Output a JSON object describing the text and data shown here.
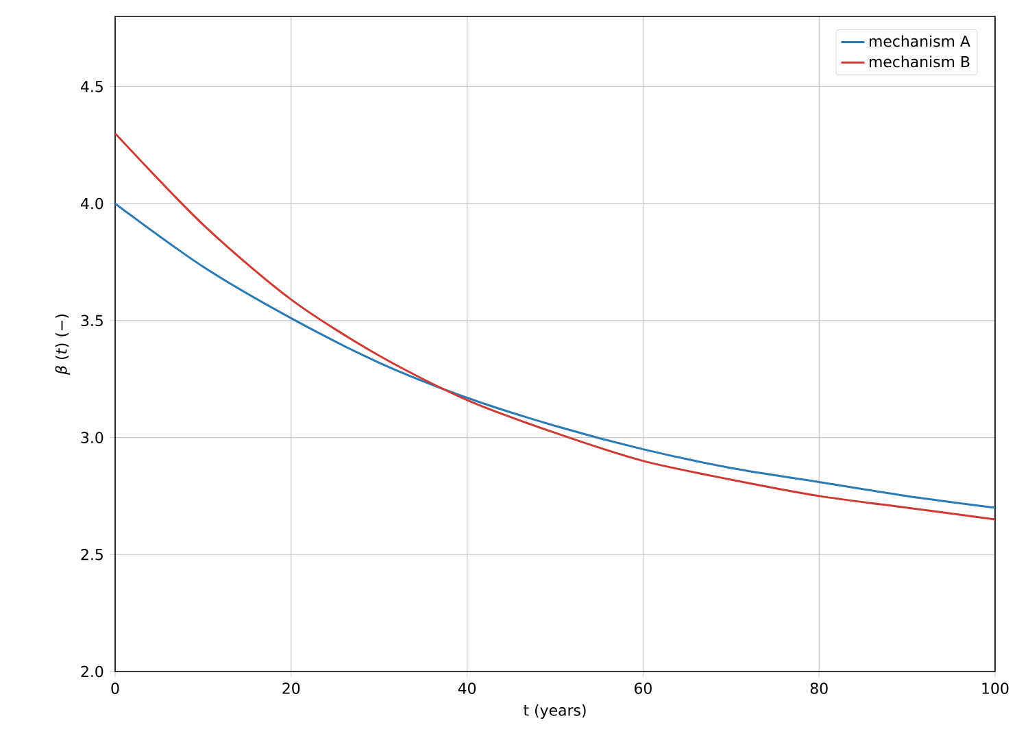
{
  "chart_data": {
    "type": "line",
    "xlabel": "t (years)",
    "ylabel": "*β* (*t*) (−)",
    "x": [
      0,
      10,
      20,
      30,
      40,
      50,
      60,
      70,
      80,
      90,
      100
    ],
    "series": [
      {
        "name": "mechanism A",
        "color": "#2a7ab4",
        "values": [
          4.0,
          3.73,
          3.51,
          3.32,
          3.17,
          3.05,
          2.95,
          2.87,
          2.81,
          2.75,
          2.7
        ]
      },
      {
        "name": "mechanism B",
        "color": "#d03a34",
        "values": [
          4.3,
          3.91,
          3.59,
          3.35,
          3.16,
          3.02,
          2.9,
          2.82,
          2.75,
          2.7,
          2.65
        ]
      }
    ],
    "xlim": [
      0,
      100
    ],
    "ylim": [
      2.0,
      4.8
    ],
    "xticks": [
      0,
      20,
      40,
      60,
      80,
      100
    ],
    "yticks": [
      {
        "value": 2.0,
        "label": "2.0"
      },
      {
        "value": 2.5,
        "label": "2.5"
      },
      {
        "value": 3.0,
        "label": "3.0"
      },
      {
        "value": 3.5,
        "label": "3.5"
      },
      {
        "value": 4.0,
        "label": "4.0"
      },
      {
        "value": 4.5,
        "label": "4.5"
      }
    ],
    "grid": true,
    "legend": "top right",
    "marker": "none",
    "line_style": "solid"
  }
}
